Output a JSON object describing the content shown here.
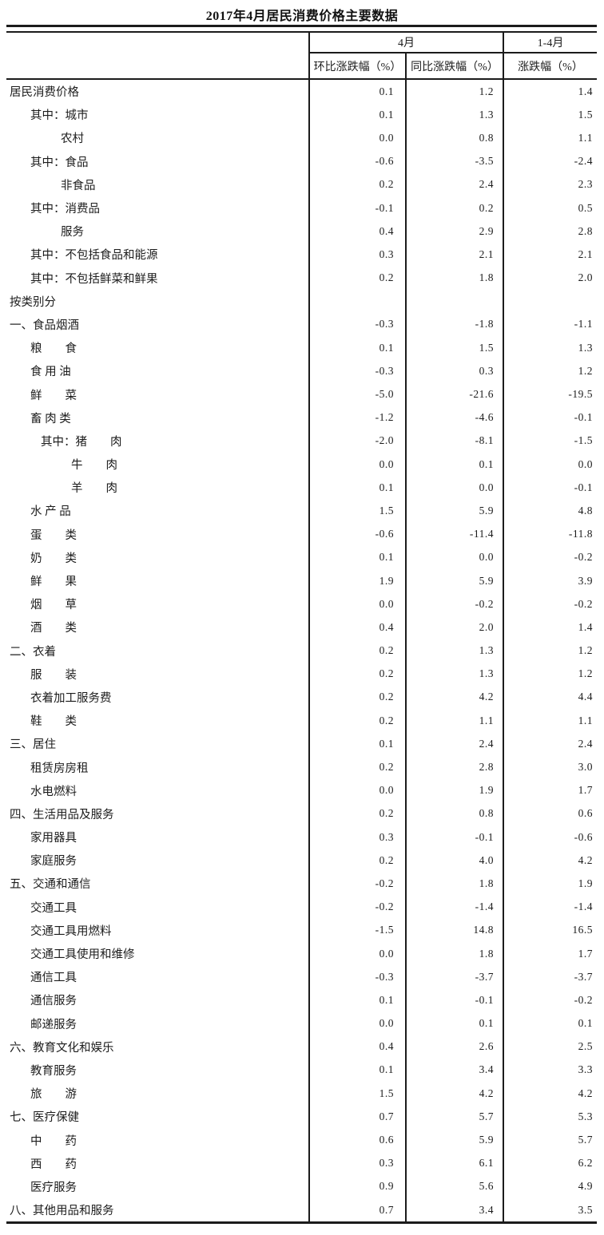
{
  "title": "2017年4月居民消费价格主要数据",
  "table": {
    "header": {
      "april_group": "4月",
      "jan_apr_group": "1-4月",
      "mom_col": "环比涨跌幅（%）",
      "yoy_col": "同比涨跌幅（%）",
      "cum_col": "涨跌幅（%）"
    },
    "rows": [
      {
        "label": "居民消费价格",
        "ind": 0,
        "mom": "0.1",
        "yoy": "1.2",
        "cum": "1.4"
      },
      {
        "label": "其中：城市",
        "ind": 1,
        "mom": "0.1",
        "yoy": "1.3",
        "cum": "1.5"
      },
      {
        "label": "农村",
        "ind": 2,
        "mom": "0.0",
        "yoy": "0.8",
        "cum": "1.1"
      },
      {
        "label": "其中：食品",
        "ind": 1,
        "mom": "-0.6",
        "yoy": "-3.5",
        "cum": "-2.4"
      },
      {
        "label": "非食品",
        "ind": 2,
        "mom": "0.2",
        "yoy": "2.4",
        "cum": "2.3"
      },
      {
        "label": "其中：消费品",
        "ind": 1,
        "mom": "-0.1",
        "yoy": "0.2",
        "cum": "0.5"
      },
      {
        "label": "服务",
        "ind": 2,
        "mom": "0.4",
        "yoy": "2.9",
        "cum": "2.8"
      },
      {
        "label": "其中：不包括食品和能源",
        "ind": 1,
        "mom": "0.3",
        "yoy": "2.1",
        "cum": "2.1"
      },
      {
        "label": "其中：不包括鲜菜和鲜果",
        "ind": 1,
        "mom": "0.2",
        "yoy": "1.8",
        "cum": "2.0"
      },
      {
        "label": "按类别分",
        "ind": 0,
        "mom": "",
        "yoy": "",
        "cum": ""
      },
      {
        "label": "一、食品烟酒",
        "ind": 0,
        "mom": "-0.3",
        "yoy": "-1.8",
        "cum": "-1.1"
      },
      {
        "label": "粮　　食",
        "ind": 1,
        "mom": "0.1",
        "yoy": "1.5",
        "cum": "1.3"
      },
      {
        "label": "食 用 油",
        "ind": 1,
        "mom": "-0.3",
        "yoy": "0.3",
        "cum": "1.2"
      },
      {
        "label": "鲜　　菜",
        "ind": 1,
        "mom": "-5.0",
        "yoy": "-21.6",
        "cum": "-19.5"
      },
      {
        "label": "畜 肉 类",
        "ind": 1,
        "mom": "-1.2",
        "yoy": "-4.6",
        "cum": "-0.1"
      },
      {
        "label": "其中：猪　　肉",
        "ind": 3,
        "mom": "-2.0",
        "yoy": "-8.1",
        "cum": "-1.5"
      },
      {
        "label": "牛　　肉",
        "ind": 4,
        "mom": "0.0",
        "yoy": "0.1",
        "cum": "0.0"
      },
      {
        "label": "羊　　肉",
        "ind": 4,
        "mom": "0.1",
        "yoy": "0.0",
        "cum": "-0.1"
      },
      {
        "label": "水 产 品",
        "ind": 1,
        "mom": "1.5",
        "yoy": "5.9",
        "cum": "4.8"
      },
      {
        "label": "蛋　　类",
        "ind": 1,
        "mom": "-0.6",
        "yoy": "-11.4",
        "cum": "-11.8"
      },
      {
        "label": "奶　　类",
        "ind": 1,
        "mom": "0.1",
        "yoy": "0.0",
        "cum": "-0.2"
      },
      {
        "label": "鲜　　果",
        "ind": 1,
        "mom": "1.9",
        "yoy": "5.9",
        "cum": "3.9"
      },
      {
        "label": "烟　　草",
        "ind": 1,
        "mom": "0.0",
        "yoy": "-0.2",
        "cum": "-0.2"
      },
      {
        "label": "酒　　类",
        "ind": 1,
        "mom": "0.4",
        "yoy": "2.0",
        "cum": "1.4"
      },
      {
        "label": "二、衣着",
        "ind": 0,
        "mom": "0.2",
        "yoy": "1.3",
        "cum": "1.2"
      },
      {
        "label": "服　　装",
        "ind": 1,
        "mom": "0.2",
        "yoy": "1.3",
        "cum": "1.2"
      },
      {
        "label": "衣着加工服务费",
        "ind": 1,
        "mom": "0.2",
        "yoy": "4.2",
        "cum": "4.4"
      },
      {
        "label": "鞋　　类",
        "ind": 1,
        "mom": "0.2",
        "yoy": "1.1",
        "cum": "1.1"
      },
      {
        "label": "三、居住",
        "ind": 0,
        "mom": "0.1",
        "yoy": "2.4",
        "cum": "2.4"
      },
      {
        "label": "租赁房房租",
        "ind": 1,
        "mom": "0.2",
        "yoy": "2.8",
        "cum": "3.0"
      },
      {
        "label": "水电燃料",
        "ind": 1,
        "mom": "0.0",
        "yoy": "1.9",
        "cum": "1.7"
      },
      {
        "label": "四、生活用品及服务",
        "ind": 0,
        "mom": "0.2",
        "yoy": "0.8",
        "cum": "0.6"
      },
      {
        "label": "家用器具",
        "ind": 1,
        "mom": "0.3",
        "yoy": "-0.1",
        "cum": "-0.6"
      },
      {
        "label": "家庭服务",
        "ind": 1,
        "mom": "0.2",
        "yoy": "4.0",
        "cum": "4.2"
      },
      {
        "label": "五、交通和通信",
        "ind": 0,
        "mom": "-0.2",
        "yoy": "1.8",
        "cum": "1.9"
      },
      {
        "label": "交通工具",
        "ind": 1,
        "mom": "-0.2",
        "yoy": "-1.4",
        "cum": "-1.4"
      },
      {
        "label": "交通工具用燃料",
        "ind": 1,
        "mom": "-1.5",
        "yoy": "14.8",
        "cum": "16.5"
      },
      {
        "label": "交通工具使用和维修",
        "ind": 1,
        "mom": "0.0",
        "yoy": "1.8",
        "cum": "1.7"
      },
      {
        "label": "通信工具",
        "ind": 1,
        "mom": "-0.3",
        "yoy": "-3.7",
        "cum": "-3.7"
      },
      {
        "label": "通信服务",
        "ind": 1,
        "mom": "0.1",
        "yoy": "-0.1",
        "cum": "-0.2"
      },
      {
        "label": "邮递服务",
        "ind": 1,
        "mom": "0.0",
        "yoy": "0.1",
        "cum": "0.1"
      },
      {
        "label": "六、教育文化和娱乐",
        "ind": 0,
        "mom": "0.4",
        "yoy": "2.6",
        "cum": "2.5"
      },
      {
        "label": "教育服务",
        "ind": 1,
        "mom": "0.1",
        "yoy": "3.4",
        "cum": "3.3"
      },
      {
        "label": "旅　　游",
        "ind": 1,
        "mom": "1.5",
        "yoy": "4.2",
        "cum": "4.2"
      },
      {
        "label": "七、医疗保健",
        "ind": 0,
        "mom": "0.7",
        "yoy": "5.7",
        "cum": "5.3"
      },
      {
        "label": "中　　药",
        "ind": 1,
        "mom": "0.6",
        "yoy": "5.9",
        "cum": "5.7"
      },
      {
        "label": "西　　药",
        "ind": 1,
        "mom": "0.3",
        "yoy": "6.1",
        "cum": "6.2"
      },
      {
        "label": "医疗服务",
        "ind": 1,
        "mom": "0.9",
        "yoy": "5.6",
        "cum": "4.9"
      },
      {
        "label": "八、其他用品和服务",
        "ind": 0,
        "mom": "0.7",
        "yoy": "3.4",
        "cum": "3.5"
      }
    ]
  }
}
